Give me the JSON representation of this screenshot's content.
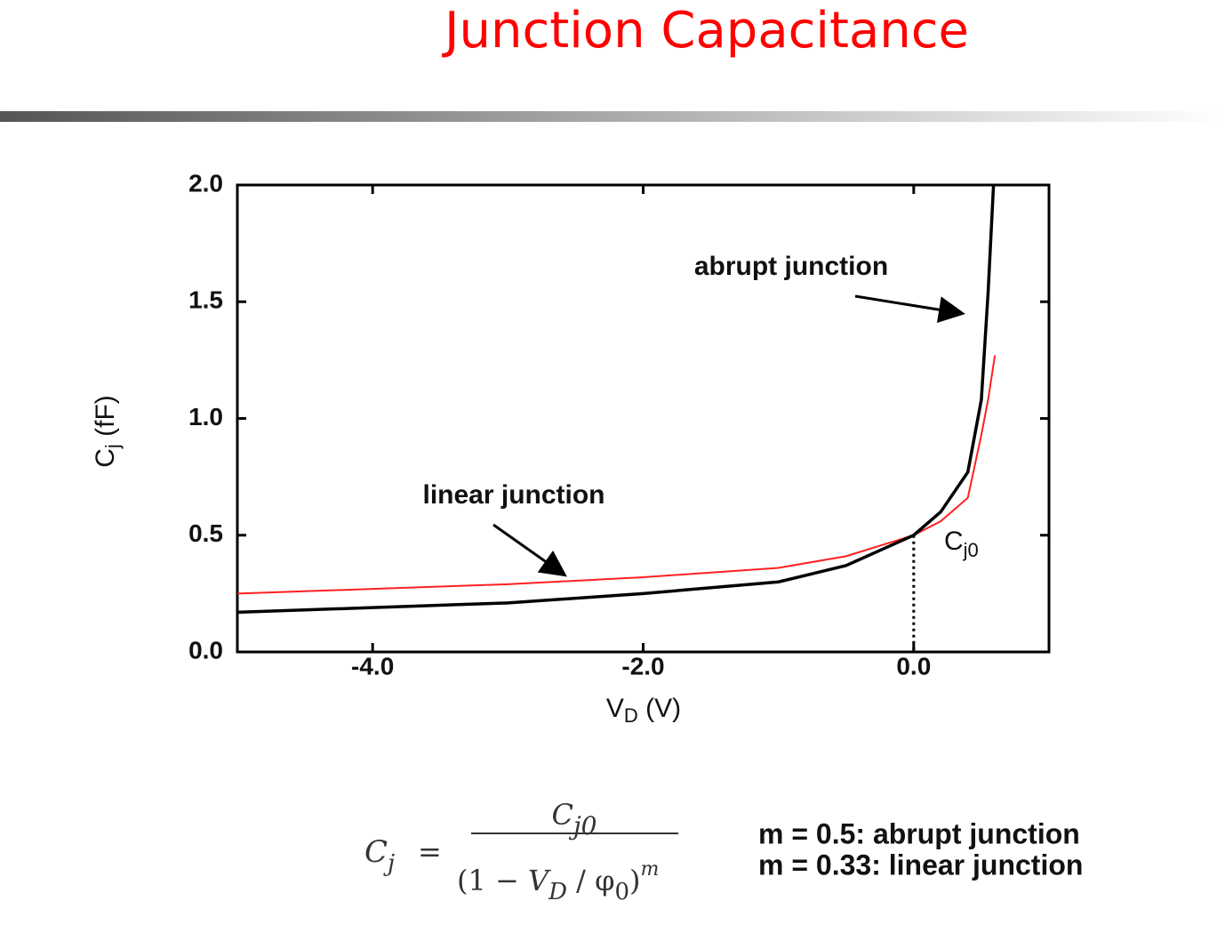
{
  "title": "Junction Capacitance",
  "chart_data": {
    "type": "line",
    "x_label": [
      "V",
      "D",
      "  (V)"
    ],
    "y_label": [
      "C",
      "j",
      " (fF)"
    ],
    "xlim": [
      -5,
      1
    ],
    "ylim": [
      0,
      2
    ],
    "xticks": [
      {
        "value": -4,
        "label": "-4.0"
      },
      {
        "value": -2,
        "label": "-2.0"
      },
      {
        "value": 0,
        "label": "0.0"
      }
    ],
    "yticks": [
      {
        "value": 0,
        "label": "0.0"
      },
      {
        "value": 0.5,
        "label": "0.5"
      },
      {
        "value": 1,
        "label": "1.0"
      },
      {
        "value": 1.5,
        "label": "1.5"
      },
      {
        "value": 2,
        "label": "2.0"
      }
    ],
    "series": [
      {
        "name": "abrupt junction",
        "color": "#000000",
        "x": [
          -5,
          -4,
          -3,
          -2,
          -1,
          -0.5,
          0,
          0.2,
          0.4,
          0.5,
          0.55,
          0.59
        ],
        "values": [
          0.17,
          0.19,
          0.21,
          0.25,
          0.3,
          0.37,
          0.5,
          0.6,
          0.77,
          1.08,
          1.54,
          2.0
        ]
      },
      {
        "name": "linear junction",
        "color": "#ff2020",
        "x": [
          -5,
          -4,
          -3,
          -2,
          -1,
          -0.5,
          0,
          0.2,
          0.4,
          0.5,
          0.55,
          0.6
        ],
        "values": [
          0.25,
          0.27,
          0.29,
          0.32,
          0.36,
          0.41,
          0.5,
          0.56,
          0.66,
          0.93,
          1.08,
          1.27
        ]
      }
    ],
    "annotation": [
      "C",
      "j0"
    ]
  },
  "formula": {
    "lhs": [
      "C",
      "j"
    ],
    "equals": "=",
    "numerator": [
      "C",
      "j0"
    ],
    "denominator": [
      "(1 − ",
      "V",
      "D",
      " / φ",
      "0",
      ")",
      "m"
    ]
  },
  "notes": [
    "m = 0.5: abrupt junction",
    "m = 0.33: linear junction"
  ]
}
